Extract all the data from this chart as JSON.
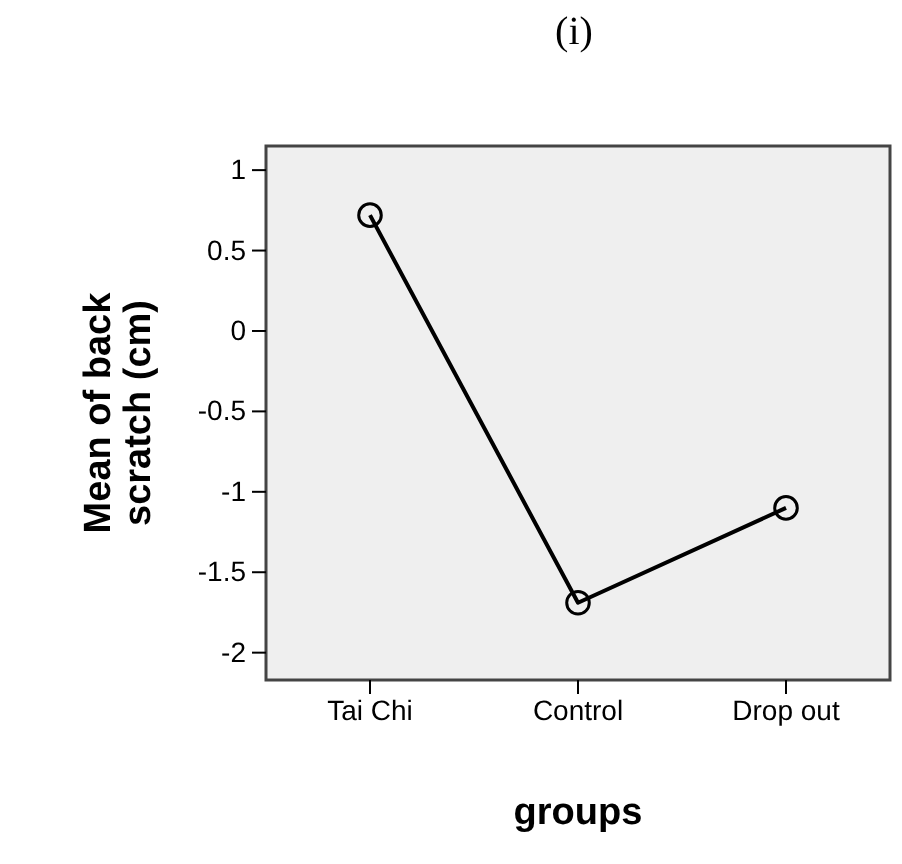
{
  "chart_data": {
    "type": "line",
    "title": "(i)",
    "xlabel": "groups",
    "ylabel": "Mean of back scratch (cm)",
    "categories": [
      "Tai Chi",
      "Control",
      "Drop out"
    ],
    "series": [
      {
        "color": "#000000",
        "values": [
          0.72,
          -1.69,
          -1.1
        ]
      }
    ],
    "ylim": [
      -2.17,
      1.15
    ],
    "yticks": [
      {
        "value": -2,
        "label": "-2"
      },
      {
        "value": -1.5,
        "label": "-1.5"
      },
      {
        "value": -1,
        "label": "-1"
      },
      {
        "value": -0.5,
        "label": "-0.5"
      },
      {
        "value": 0,
        "label": "0"
      },
      {
        "value": 0.5,
        "label": "0.5"
      },
      {
        "value": 1,
        "label": "1"
      }
    ],
    "marker": "circle"
  }
}
